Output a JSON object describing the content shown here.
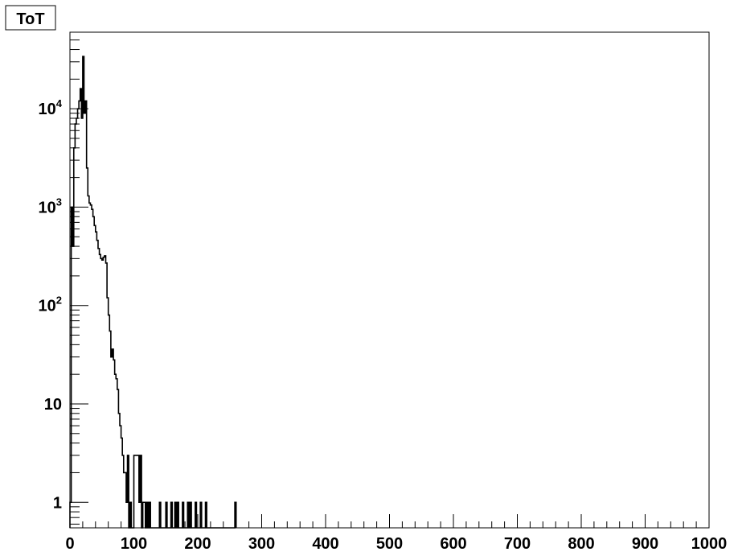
{
  "chart_data": {
    "type": "area",
    "title": "ToT",
    "xlabel": "",
    "ylabel": "",
    "xlim": [
      0,
      1000
    ],
    "ylim": [
      0.55,
      60000
    ],
    "y_scale": "log",
    "grid": false,
    "legend": "none",
    "x_ticks": [
      {
        "value": 0,
        "label": "0"
      },
      {
        "value": 100,
        "label": "100"
      },
      {
        "value": 200,
        "label": "200"
      },
      {
        "value": 300,
        "label": "300"
      },
      {
        "value": 400,
        "label": "400"
      },
      {
        "value": 500,
        "label": "500"
      },
      {
        "value": 600,
        "label": "600"
      },
      {
        "value": 700,
        "label": "700"
      },
      {
        "value": 800,
        "label": "800"
      },
      {
        "value": 900,
        "label": "900"
      },
      {
        "value": 1000,
        "label": "1000"
      }
    ],
    "y_ticks": [
      {
        "value": 1,
        "base": "1",
        "exp": ""
      },
      {
        "value": 10,
        "base": "10",
        "exp": ""
      },
      {
        "value": 100,
        "base": "10",
        "exp": "2"
      },
      {
        "value": 1000,
        "base": "10",
        "exp": "3"
      },
      {
        "value": 10000,
        "base": "10",
        "exp": "4"
      }
    ],
    "bin_width": 2,
    "bins": [
      [
        0,
        1
      ],
      [
        2,
        1000
      ],
      [
        4,
        400
      ],
      [
        6,
        4000
      ],
      [
        8,
        7000
      ],
      [
        10,
        8000
      ],
      [
        12,
        10000
      ],
      [
        14,
        12000
      ],
      [
        16,
        16000
      ],
      [
        18,
        8000
      ],
      [
        20,
        34000
      ],
      [
        22,
        9000
      ],
      [
        24,
        12000
      ],
      [
        26,
        2500
      ],
      [
        28,
        1300
      ],
      [
        30,
        1100
      ],
      [
        32,
        1050
      ],
      [
        34,
        950
      ],
      [
        36,
        800
      ],
      [
        38,
        650
      ],
      [
        40,
        560
      ],
      [
        42,
        460
      ],
      [
        44,
        380
      ],
      [
        46,
        330
      ],
      [
        48,
        300
      ],
      [
        50,
        290
      ],
      [
        52,
        310
      ],
      [
        54,
        320
      ],
      [
        56,
        270
      ],
      [
        58,
        120
      ],
      [
        60,
        80
      ],
      [
        62,
        55
      ],
      [
        64,
        30
      ],
      [
        66,
        36
      ],
      [
        68,
        28
      ],
      [
        70,
        20
      ],
      [
        72,
        18
      ],
      [
        74,
        14
      ],
      [
        76,
        8
      ],
      [
        78,
        6
      ],
      [
        80,
        4.5
      ],
      [
        82,
        3
      ],
      [
        84,
        2
      ],
      [
        86,
        2
      ],
      [
        88,
        1
      ],
      [
        90,
        3
      ],
      [
        94,
        1
      ],
      [
        100,
        3
      ],
      [
        102,
        3
      ],
      [
        104,
        3
      ],
      [
        106,
        3
      ],
      [
        108,
        1
      ],
      [
        110,
        3
      ],
      [
        114,
        1
      ],
      [
        116,
        1
      ],
      [
        120,
        1
      ],
      [
        124,
        1
      ],
      [
        140,
        1
      ],
      [
        150,
        1
      ],
      [
        158,
        1
      ],
      [
        164,
        1
      ],
      [
        168,
        1
      ],
      [
        176,
        1
      ],
      [
        184,
        1
      ],
      [
        188,
        1
      ],
      [
        196,
        1
      ],
      [
        204,
        1
      ],
      [
        212,
        1
      ],
      [
        258,
        1
      ]
    ]
  }
}
